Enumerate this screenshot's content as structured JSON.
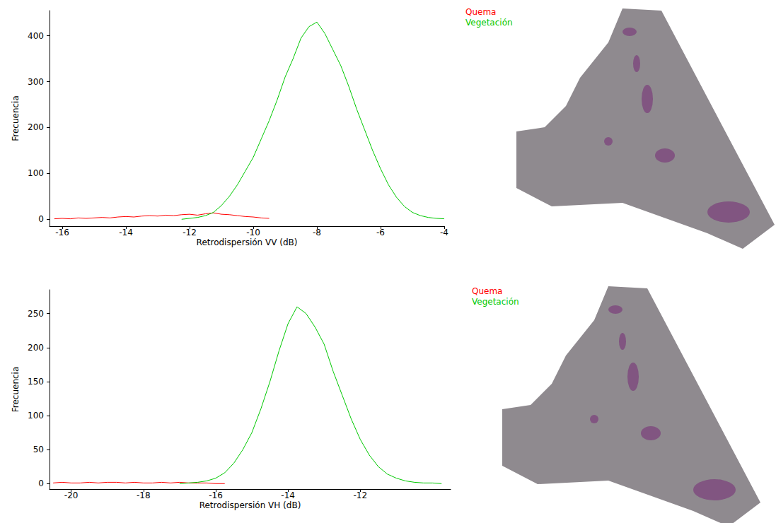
{
  "chart_data": [
    {
      "type": "line",
      "x_label": "Retrodispersión VV (dB)",
      "y_label": "Frecuencia",
      "xlim": [
        -16.4,
        -4
      ],
      "xticks": [
        -16,
        -14,
        -12,
        -10,
        -8,
        -6,
        -4
      ],
      "ylim": [
        -15,
        455
      ],
      "yticks": [
        0,
        100,
        200,
        300,
        400
      ],
      "legend": "top-right",
      "grid": false,
      "x": [
        -16.25,
        -16,
        -15.75,
        -15.5,
        -15.25,
        -15,
        -14.75,
        -14.5,
        -14.25,
        -14,
        -13.75,
        -13.5,
        -13.25,
        -13,
        -12.75,
        -12.5,
        -12.25,
        -12,
        -11.75,
        -11.5,
        -11.25,
        -11,
        -10.75,
        -10.5,
        -10.25,
        -10,
        -9.75,
        -9.5,
        -9.25,
        -9,
        -8.75,
        -8.5,
        -8.25,
        -8,
        -7.75,
        -7.5,
        -7.25,
        -7,
        -6.75,
        -6.5,
        -6.25,
        -6,
        -5.75,
        -5.5,
        -5.25,
        -5,
        -4.75,
        -4.5,
        -4.25,
        -4
      ],
      "series": [
        {
          "name": "Quema",
          "color": "#ff0000",
          "values": [
            1,
            2,
            1,
            3,
            2,
            3,
            4,
            3,
            5,
            6,
            5,
            7,
            8,
            7,
            9,
            8,
            10,
            11,
            9,
            12,
            14,
            11,
            10,
            8,
            6,
            5,
            3,
            2,
            null,
            null,
            null,
            null,
            null,
            null,
            null,
            null,
            null,
            null,
            null,
            null,
            null,
            null,
            null,
            null,
            null,
            null,
            null,
            null,
            null,
            null
          ]
        },
        {
          "name": "Vegetación",
          "color": "#00c800",
          "values": [
            null,
            null,
            null,
            null,
            null,
            null,
            null,
            null,
            null,
            null,
            null,
            null,
            null,
            null,
            null,
            null,
            0,
            2,
            4,
            8,
            15,
            30,
            50,
            75,
            105,
            135,
            175,
            215,
            260,
            310,
            350,
            395,
            420,
            430,
            405,
            370,
            335,
            290,
            240,
            195,
            150,
            110,
            75,
            48,
            28,
            15,
            8,
            4,
            2,
            1
          ]
        }
      ]
    },
    {
      "type": "line",
      "x_label": "Retrodispersión VH (dB)",
      "y_label": "Frecuencia",
      "xlim": [
        -20.6,
        -9.5
      ],
      "xticks": [
        -20,
        -18,
        -16,
        -14,
        -12
      ],
      "ylim": [
        -8,
        285
      ],
      "yticks": [
        0,
        50,
        100,
        150,
        200,
        250
      ],
      "legend": "top-right",
      "grid": false,
      "x": [
        -20.5,
        -20.25,
        -20,
        -19.75,
        -19.5,
        -19.25,
        -19,
        -18.75,
        -18.5,
        -18.25,
        -18,
        -17.75,
        -17.5,
        -17.25,
        -17,
        -16.75,
        -16.5,
        -16.25,
        -16,
        -15.75,
        -15.5,
        -15.25,
        -15,
        -14.75,
        -14.5,
        -14.25,
        -14,
        -13.75,
        -13.5,
        -13.25,
        -13,
        -12.75,
        -12.5,
        -12.25,
        -12,
        -11.75,
        -11.5,
        -11.25,
        -11,
        -10.75,
        -10.5,
        -10.25,
        -10,
        -9.75
      ],
      "series": [
        {
          "name": "Quema",
          "color": "#ff0000",
          "values": [
            1,
            2,
            1,
            1,
            2,
            1,
            2,
            2,
            1,
            2,
            1,
            1,
            2,
            1,
            2,
            1,
            1,
            1,
            0,
            0,
            null,
            null,
            null,
            null,
            null,
            null,
            null,
            null,
            null,
            null,
            null,
            null,
            null,
            null,
            null,
            null,
            null,
            null,
            null,
            null,
            null,
            null,
            null,
            null
          ]
        },
        {
          "name": "Vegetación",
          "color": "#00c800",
          "values": [
            null,
            null,
            null,
            null,
            null,
            null,
            null,
            null,
            null,
            null,
            null,
            null,
            null,
            null,
            0,
            1,
            2,
            4,
            8,
            16,
            30,
            50,
            75,
            110,
            150,
            195,
            235,
            260,
            250,
            230,
            205,
            165,
            130,
            95,
            65,
            42,
            25,
            14,
            8,
            4,
            2,
            1,
            1,
            0
          ]
        }
      ]
    }
  ]
}
